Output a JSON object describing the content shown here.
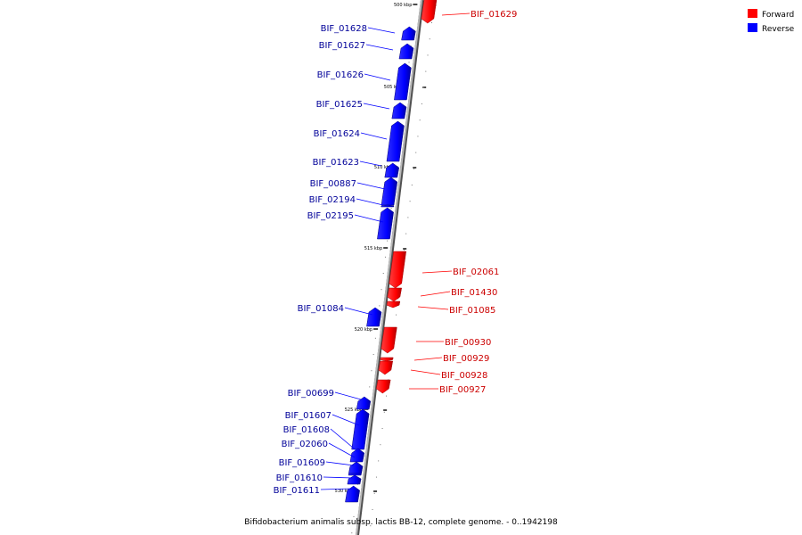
{
  "caption": "Bifidobacterium animalis subsp. lactis BB-12, complete genome. - 0..1942198",
  "legend": [
    {
      "label": "Forward",
      "color": "#ff0000"
    },
    {
      "label": "Reverse",
      "color": "#0000ff"
    }
  ],
  "colors": {
    "forward": "#ff0000",
    "reverse": "#0000ff",
    "backbone": "#808080",
    "text_forward": "#cc0000",
    "text_reverse": "#000099"
  },
  "ticks": [
    "500 kbp",
    "505 kbp",
    "510 kbp",
    "515 kbp",
    "520 kbp",
    "525 kbp",
    "530 kbp"
  ],
  "genes": [
    {
      "label": "BIF_01629",
      "strand": "forward"
    },
    {
      "label": "BIF_01628",
      "strand": "reverse"
    },
    {
      "label": "BIF_01627",
      "strand": "reverse"
    },
    {
      "label": "BIF_01626",
      "strand": "reverse"
    },
    {
      "label": "BIF_01625",
      "strand": "reverse"
    },
    {
      "label": "BIF_01624",
      "strand": "reverse"
    },
    {
      "label": "BIF_01623",
      "strand": "reverse"
    },
    {
      "label": "BIF_00887",
      "strand": "reverse"
    },
    {
      "label": "BIF_02194",
      "strand": "reverse"
    },
    {
      "label": "BIF_02195",
      "strand": "reverse"
    },
    {
      "label": "BIF_02061",
      "strand": "forward"
    },
    {
      "label": "BIF_01430",
      "strand": "forward"
    },
    {
      "label": "BIF_01085",
      "strand": "forward"
    },
    {
      "label": "BIF_01084",
      "strand": "reverse"
    },
    {
      "label": "BIF_00930",
      "strand": "forward"
    },
    {
      "label": "BIF_00929",
      "strand": "forward"
    },
    {
      "label": "BIF_00928",
      "strand": "forward"
    },
    {
      "label": "BIF_00927",
      "strand": "forward"
    },
    {
      "label": "BIF_00699",
      "strand": "reverse"
    },
    {
      "label": "BIF_01607",
      "strand": "reverse"
    },
    {
      "label": "BIF_01608",
      "strand": "reverse"
    },
    {
      "label": "BIF_02060",
      "strand": "reverse"
    },
    {
      "label": "BIF_01609",
      "strand": "reverse"
    },
    {
      "label": "BIF_01610",
      "strand": "reverse"
    },
    {
      "label": "BIF_01611",
      "strand": "reverse"
    }
  ]
}
